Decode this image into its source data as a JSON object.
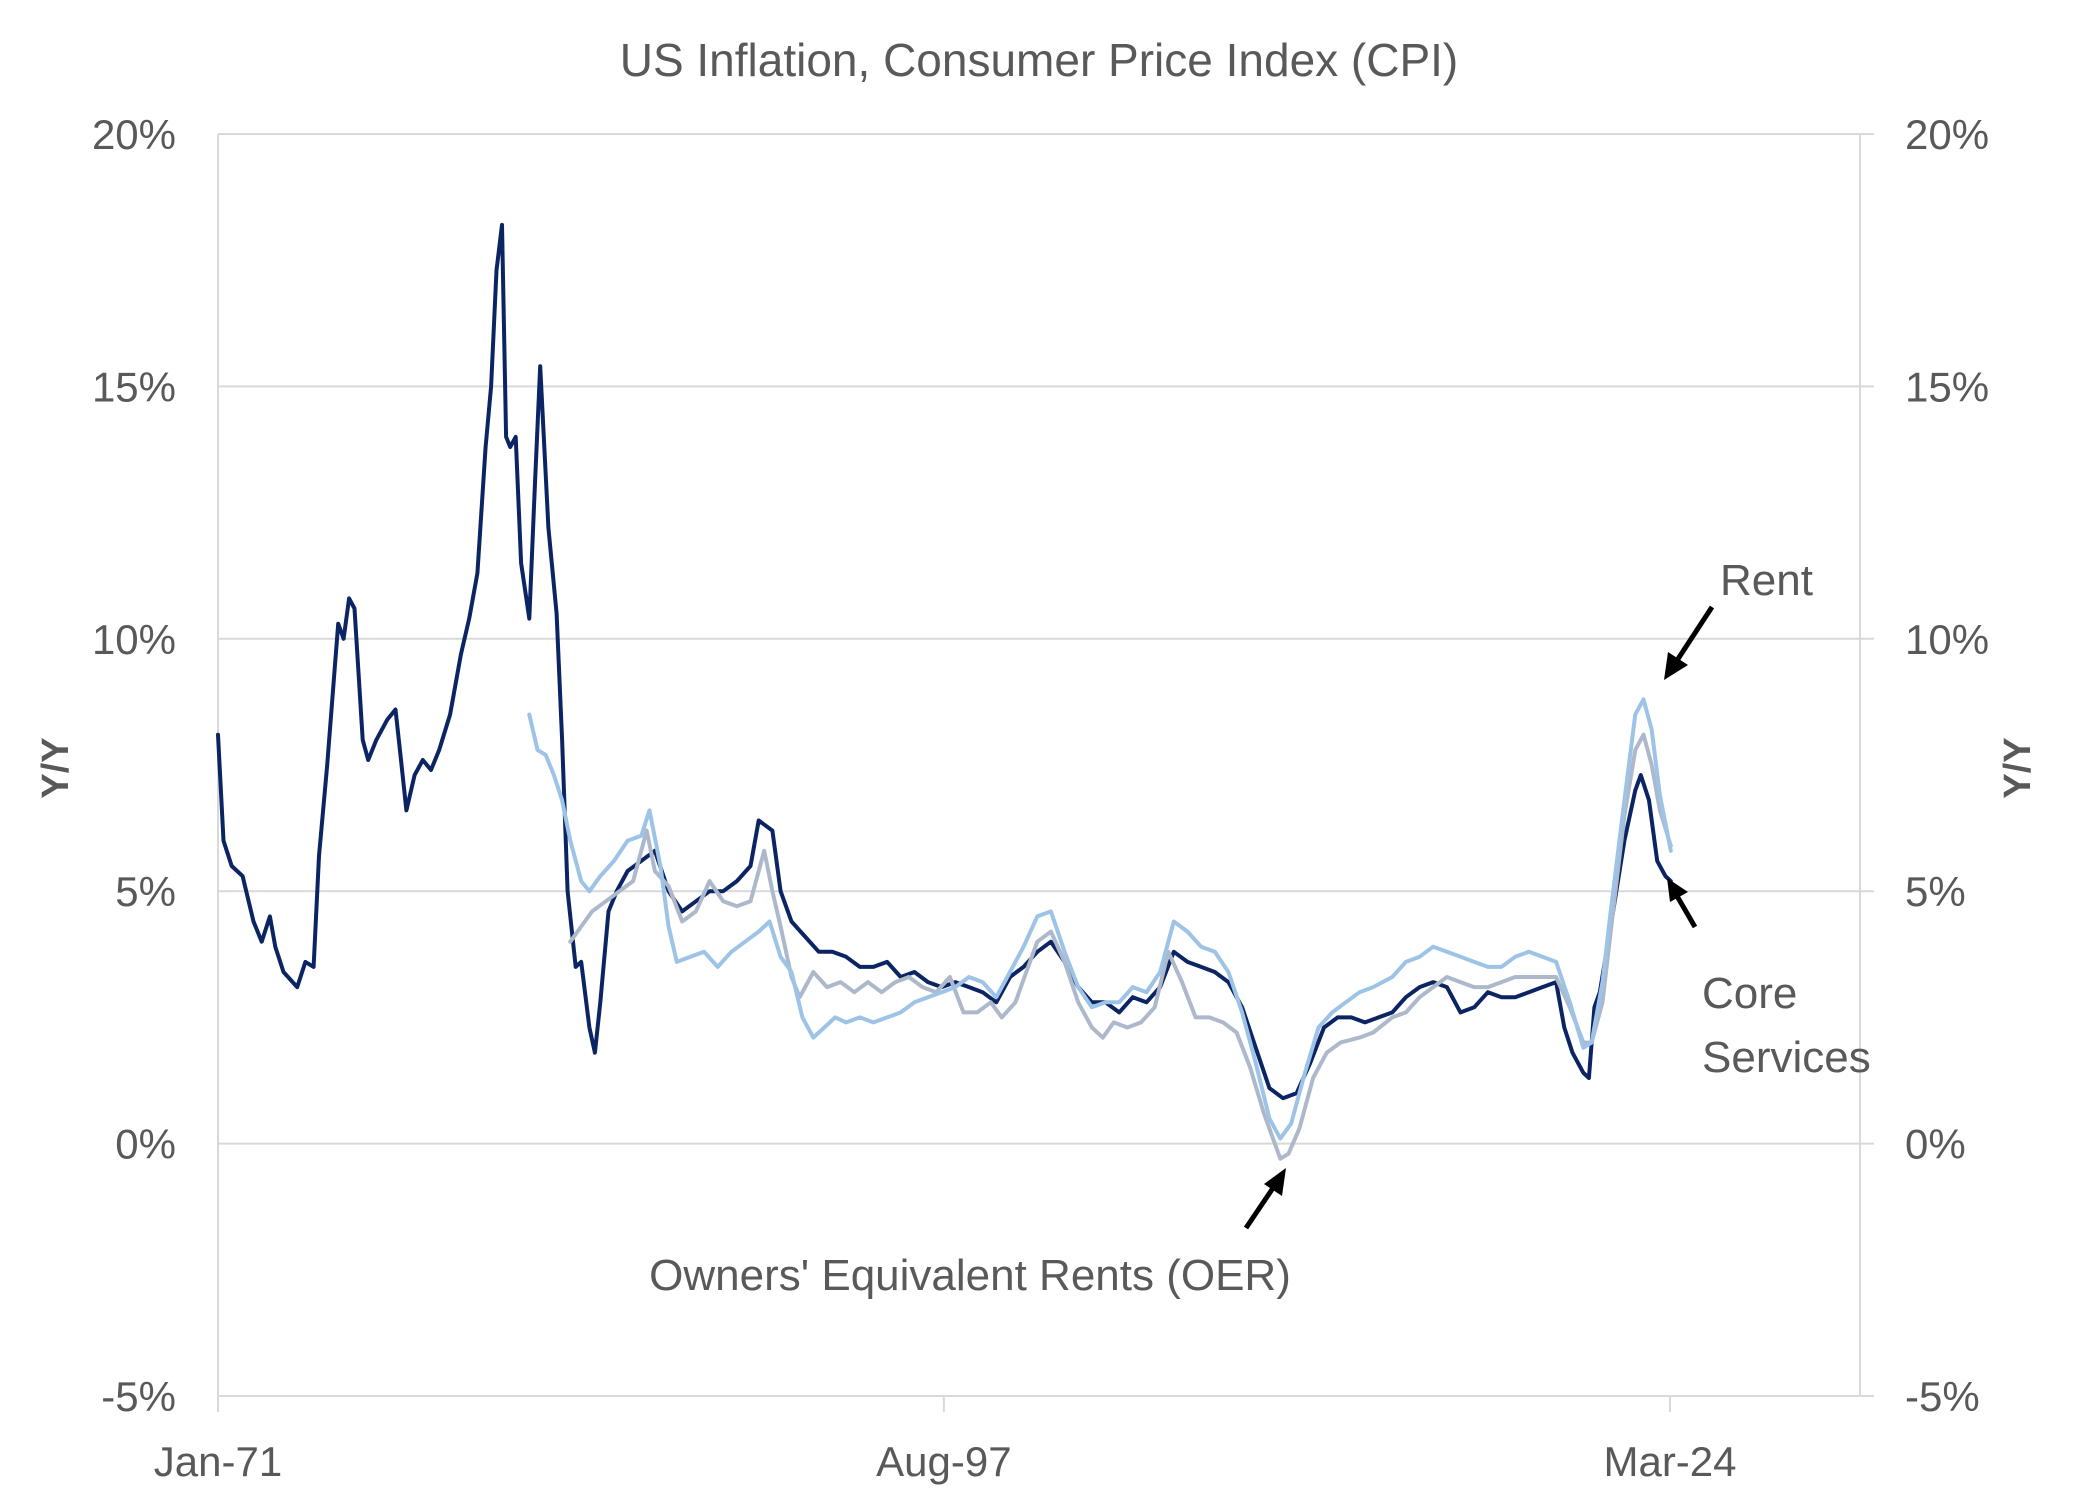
{
  "chart_data": {
    "type": "line",
    "title": "US Inflation, Consumer Price Index (CPI)",
    "xlabel": "",
    "ylabel": "Y/Y",
    "ylabel_right": "Y/Y",
    "ylim": [
      -5,
      20
    ],
    "y_ticks": [
      20,
      15,
      10,
      5,
      0,
      -5
    ],
    "y_tick_labels": [
      "20%",
      "15%",
      "10%",
      "5%",
      "0%",
      "-5%"
    ],
    "xlim": [
      1971.0,
      2031.9
    ],
    "x_ticks": [
      1971.0,
      1997.58,
      2024.17
    ],
    "x_tick_labels": [
      "Jan-71",
      "Aug-97",
      "Mar-24"
    ],
    "grid": true,
    "legend": "none (direct annotations)",
    "annotations": [
      {
        "text": "Rent",
        "series": "Rent",
        "point": [
          2023.3,
          8.8
        ]
      },
      {
        "text": "Core",
        "text2": "Services",
        "series": "Core Services",
        "point": [
          2024.2,
          5.1
        ]
      },
      {
        "text": "Owners' Equivalent Rents (OER)",
        "series": "OER",
        "point": [
          2010.0,
          -0.4
        ]
      }
    ],
    "series": [
      {
        "name": "Core Services",
        "color": "#0b2463",
        "x": [
          1971.0,
          1971.2,
          1971.5,
          1971.9,
          1972.3,
          1972.6,
          1972.9,
          1973.1,
          1973.4,
          1973.9,
          1974.2,
          1974.5,
          1974.7,
          1975.0,
          1975.4,
          1975.6,
          1975.8,
          1976.0,
          1976.3,
          1976.5,
          1976.8,
          1977.2,
          1977.5,
          1977.7,
          1977.9,
          1978.2,
          1978.5,
          1978.8,
          1979.1,
          1979.5,
          1979.9,
          1980.2,
          1980.5,
          1980.8,
          1981.0,
          1981.2,
          1981.4,
          1981.55,
          1981.7,
          1981.9,
          1982.1,
          1982.4,
          1982.6,
          1982.8,
          1983.1,
          1983.4,
          1983.6,
          1983.8,
          1984.1,
          1984.3,
          1984.6,
          1984.8,
          1985.0,
          1985.3,
          1985.6,
          1986.0,
          1986.5,
          1987.0,
          1987.5,
          1988.0,
          1988.5,
          1989.0,
          1989.5,
          1990.0,
          1990.5,
          1990.8,
          1991.3,
          1991.6,
          1992.0,
          1992.5,
          1993.0,
          1993.5,
          1994.0,
          1994.5,
          1995.0,
          1995.5,
          1996.0,
          1996.5,
          1997.0,
          1997.5,
          1998.0,
          1998.5,
          1999.0,
          1999.5,
          2000.0,
          2000.5,
          2001.0,
          2001.5,
          2002.0,
          2002.5,
          2003.0,
          2003.5,
          2004.0,
          2004.5,
          2005.0,
          2005.5,
          2006.0,
          2006.5,
          2007.0,
          2007.5,
          2008.0,
          2008.5,
          2009.0,
          2009.5,
          2010.0,
          2010.5,
          2011.0,
          2011.5,
          2012.0,
          2012.5,
          2013.0,
          2013.5,
          2014.0,
          2014.5,
          2015.0,
          2015.5,
          2016.0,
          2016.5,
          2017.0,
          2017.5,
          2018.0,
          2018.5,
          2019.0,
          2019.5,
          2020.0,
          2020.3,
          2020.6,
          2021.0,
          2021.2,
          2021.4,
          2021.6,
          2022.0,
          2022.5,
          2022.9,
          2023.1,
          2023.4,
          2023.7,
          2024.0,
          2024.2
        ],
        "values": [
          8.1,
          6.0,
          5.5,
          5.3,
          4.4,
          4.0,
          4.5,
          3.9,
          3.4,
          3.1,
          3.6,
          3.5,
          5.7,
          7.5,
          10.3,
          10.0,
          10.8,
          10.6,
          8.0,
          7.6,
          8.0,
          8.4,
          8.6,
          7.6,
          6.6,
          7.3,
          7.6,
          7.4,
          7.8,
          8.5,
          9.7,
          10.4,
          11.3,
          13.8,
          15.0,
          17.3,
          18.2,
          14.0,
          13.8,
          14.0,
          11.5,
          10.4,
          13.0,
          15.4,
          12.2,
          10.5,
          8.0,
          5.0,
          3.5,
          3.6,
          2.3,
          1.8,
          2.8,
          4.6,
          5.0,
          5.4,
          5.6,
          5.8,
          5.0,
          4.6,
          4.8,
          5.0,
          5.0,
          5.2,
          5.5,
          6.4,
          6.2,
          5.0,
          4.4,
          4.1,
          3.8,
          3.8,
          3.7,
          3.5,
          3.5,
          3.6,
          3.3,
          3.4,
          3.2,
          3.1,
          3.2,
          3.1,
          3.0,
          2.8,
          3.3,
          3.5,
          3.8,
          4.0,
          3.6,
          3.1,
          2.8,
          2.8,
          2.6,
          2.9,
          2.8,
          3.1,
          3.8,
          3.6,
          3.5,
          3.4,
          3.2,
          2.7,
          1.9,
          1.1,
          0.9,
          1.0,
          1.6,
          2.3,
          2.5,
          2.5,
          2.4,
          2.5,
          2.6,
          2.9,
          3.1,
          3.2,
          3.1,
          2.6,
          2.7,
          3.0,
          2.9,
          2.9,
          3.0,
          3.1,
          3.2,
          2.3,
          1.8,
          1.4,
          1.3,
          2.7,
          3.0,
          4.3,
          6.0,
          7.0,
          7.3,
          6.8,
          5.6,
          5.3,
          5.2
        ]
      },
      {
        "name": "OER",
        "color": "#adb9ca",
        "x": [
          1983.9,
          1984.3,
          1984.7,
          1985.2,
          1985.7,
          1986.2,
          1986.7,
          1987.0,
          1987.5,
          1988.0,
          1988.5,
          1989.0,
          1989.5,
          1990.0,
          1990.5,
          1991.0,
          1991.3,
          1991.6,
          1992.0,
          1992.3,
          1992.8,
          1993.3,
          1993.8,
          1994.3,
          1994.8,
          1995.3,
          1995.8,
          1996.3,
          1996.8,
          1997.3,
          1997.8,
          1998.3,
          1998.8,
          1999.3,
          1999.7,
          2000.2,
          2000.6,
          2001.0,
          2001.5,
          2002.0,
          2002.5,
          2003.0,
          2003.4,
          2003.8,
          2004.3,
          2004.8,
          2005.3,
          2005.8,
          2006.3,
          2006.8,
          2007.3,
          2007.8,
          2008.3,
          2008.8,
          2009.3,
          2009.9,
          2010.2,
          2010.6,
          2011.1,
          2011.6,
          2012.1,
          2012.8,
          2013.3,
          2014.0,
          2014.5,
          2015.0,
          2015.5,
          2016.0,
          2016.5,
          2017.0,
          2017.5,
          2018.0,
          2018.5,
          2019.0,
          2019.5,
          2020.0,
          2020.5,
          2021.0,
          2021.3,
          2021.7,
          2022.0,
          2022.5,
          2022.9,
          2023.2,
          2023.5,
          2023.8,
          2024.2
        ],
        "values": [
          4.0,
          4.3,
          4.6,
          4.8,
          5.0,
          5.2,
          6.2,
          5.4,
          5.1,
          4.4,
          4.6,
          5.2,
          4.8,
          4.7,
          4.8,
          5.8,
          5.0,
          4.3,
          3.3,
          2.9,
          3.4,
          3.1,
          3.2,
          3.0,
          3.2,
          3.0,
          3.2,
          3.3,
          3.1,
          3.0,
          3.3,
          2.6,
          2.6,
          2.8,
          2.5,
          2.8,
          3.4,
          4.0,
          4.2,
          3.6,
          2.8,
          2.3,
          2.1,
          2.4,
          2.3,
          2.4,
          2.7,
          3.8,
          3.2,
          2.5,
          2.5,
          2.4,
          2.2,
          1.5,
          0.6,
          -0.3,
          -0.2,
          0.3,
          1.3,
          1.8,
          2.0,
          2.1,
          2.2,
          2.5,
          2.6,
          2.9,
          3.1,
          3.3,
          3.2,
          3.1,
          3.1,
          3.2,
          3.3,
          3.3,
          3.3,
          3.3,
          2.7,
          2.0,
          2.0,
          2.8,
          4.2,
          6.5,
          7.8,
          8.1,
          7.5,
          6.6,
          5.9
        ]
      },
      {
        "name": "Rent",
        "color": "#9dc3e6",
        "x": [
          1982.4,
          1982.7,
          1983.0,
          1983.3,
          1983.6,
          1983.9,
          1984.3,
          1984.6,
          1985.0,
          1985.5,
          1986.0,
          1986.5,
          1986.8,
          1987.2,
          1987.5,
          1987.8,
          1988.3,
          1988.8,
          1989.3,
          1989.8,
          1990.3,
          1990.8,
          1991.2,
          1991.6,
          1992.0,
          1992.4,
          1992.8,
          1993.2,
          1993.6,
          1994.0,
          1994.5,
          1995.0,
          1995.5,
          1996.0,
          1996.5,
          1997.0,
          1997.5,
          1998.0,
          1998.5,
          1999.0,
          1999.5,
          2000.0,
          2000.5,
          2001.0,
          2001.5,
          2002.0,
          2002.5,
          2003.0,
          2003.5,
          2004.0,
          2004.5,
          2005.0,
          2005.5,
          2006.0,
          2006.5,
          2007.0,
          2007.5,
          2008.0,
          2008.5,
          2009.0,
          2009.5,
          2009.9,
          2010.3,
          2010.8,
          2011.3,
          2011.8,
          2012.3,
          2012.8,
          2013.3,
          2014.0,
          2014.5,
          2015.0,
          2015.5,
          2016.0,
          2016.5,
          2017.0,
          2017.5,
          2018.0,
          2018.5,
          2019.0,
          2019.5,
          2020.0,
          2020.5,
          2021.0,
          2021.3,
          2021.7,
          2022.0,
          2022.5,
          2022.9,
          2023.2,
          2023.5,
          2023.8,
          2024.2
        ],
        "values": [
          8.5,
          7.8,
          7.7,
          7.3,
          6.8,
          6.0,
          5.2,
          5.0,
          5.3,
          5.6,
          6.0,
          6.1,
          6.6,
          5.5,
          4.3,
          3.6,
          3.7,
          3.8,
          3.5,
          3.8,
          4.0,
          4.2,
          4.4,
          3.7,
          3.4,
          2.5,
          2.1,
          2.3,
          2.5,
          2.4,
          2.5,
          2.4,
          2.5,
          2.6,
          2.8,
          2.9,
          3.0,
          3.1,
          3.3,
          3.2,
          2.9,
          3.4,
          3.9,
          4.5,
          4.6,
          3.8,
          3.1,
          2.7,
          2.8,
          2.8,
          3.1,
          3.0,
          3.4,
          4.4,
          4.2,
          3.9,
          3.8,
          3.4,
          2.6,
          1.6,
          0.5,
          0.1,
          0.4,
          1.4,
          2.3,
          2.6,
          2.8,
          3.0,
          3.1,
          3.3,
          3.6,
          3.7,
          3.9,
          3.8,
          3.7,
          3.6,
          3.5,
          3.5,
          3.7,
          3.8,
          3.7,
          3.6,
          2.8,
          1.9,
          2.0,
          3.2,
          4.6,
          6.8,
          8.5,
          8.8,
          8.2,
          6.9,
          5.8
        ]
      }
    ]
  }
}
